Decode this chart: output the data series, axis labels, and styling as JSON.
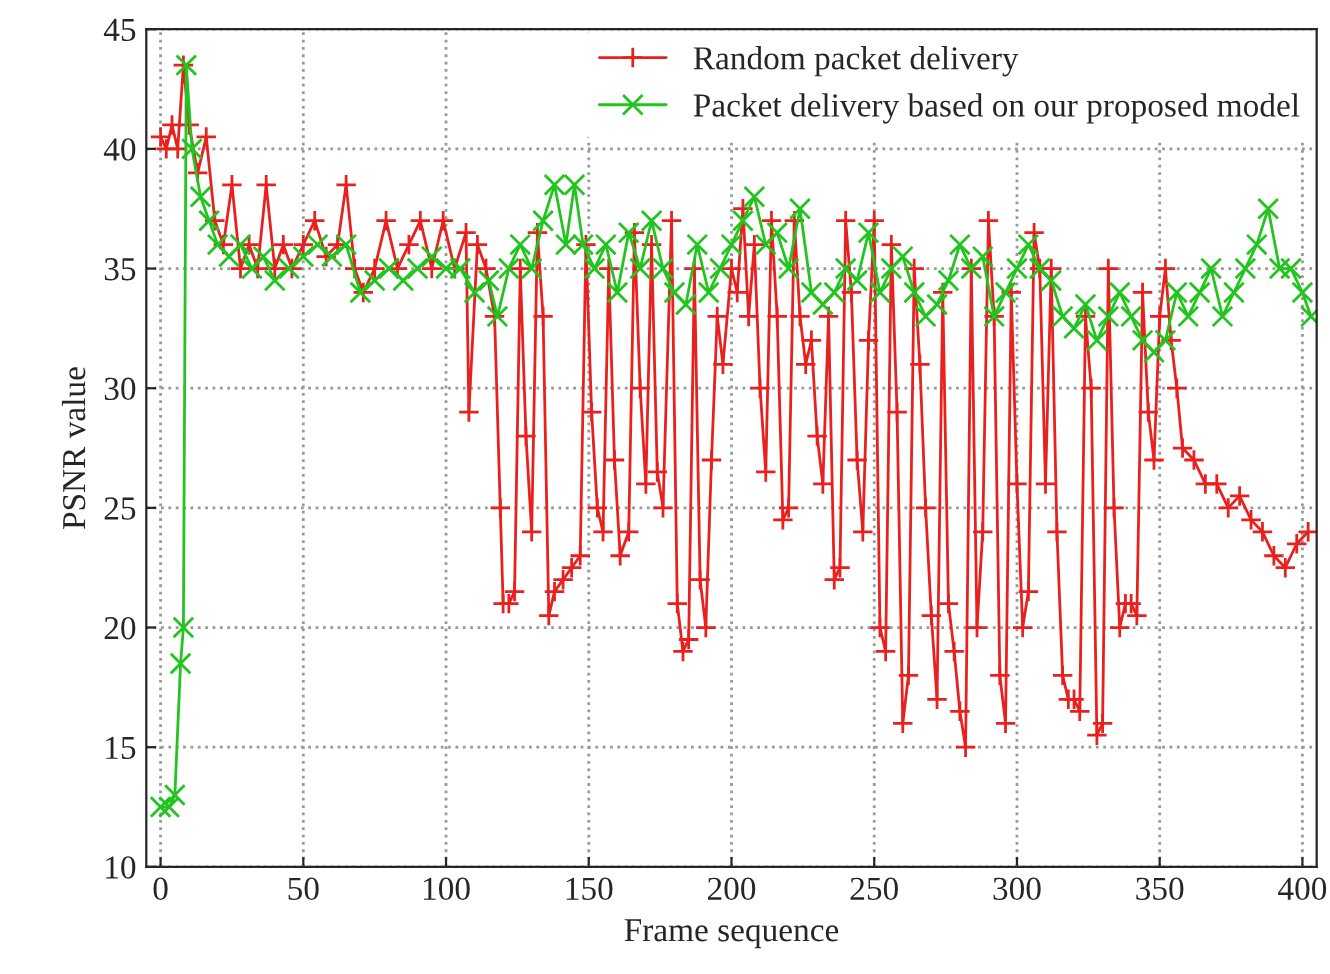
{
  "chart_data": {
    "type": "line",
    "xlabel": "Frame sequence",
    "ylabel": "PSNR value",
    "xlim": [
      -5,
      405
    ],
    "ylim": [
      10,
      45
    ],
    "xticks": [
      0,
      50,
      100,
      150,
      200,
      250,
      300,
      350,
      400
    ],
    "yticks": [
      10,
      15,
      20,
      25,
      30,
      35,
      40,
      45
    ],
    "grid": true,
    "legend": "top right",
    "series": [
      {
        "name": "Random packet delivery",
        "color": "#e8201e",
        "marker": "cross",
        "x": [
          0,
          2,
          4,
          6,
          8,
          10,
          13,
          16,
          19,
          22,
          25,
          28,
          31,
          34,
          37,
          40,
          43,
          46,
          50,
          54,
          58,
          62,
          65,
          68,
          71,
          75,
          79,
          83,
          87,
          91,
          95,
          99,
          103,
          107,
          108,
          111,
          114,
          117,
          119,
          120,
          122,
          124,
          126,
          128,
          130,
          132,
          134,
          136,
          138,
          141,
          144,
          147,
          149,
          151,
          153,
          155,
          157,
          159,
          161,
          164,
          166,
          168,
          170,
          172,
          174,
          176,
          179,
          181,
          183,
          185,
          187,
          189,
          191,
          193,
          195,
          197,
          200,
          202,
          204,
          206,
          208,
          210,
          212,
          214,
          216,
          218,
          220,
          222,
          224,
          226,
          228,
          230,
          232,
          234,
          236,
          238,
          240,
          242,
          244,
          246,
          248,
          250,
          252,
          254,
          256,
          258,
          260,
          262,
          264,
          266,
          268,
          270,
          272,
          274,
          276,
          278,
          280,
          282,
          284,
          286,
          288,
          290,
          292,
          294,
          296,
          298,
          300,
          302,
          304,
          306,
          308,
          310,
          312,
          314,
          316,
          318,
          320,
          322,
          324,
          326,
          328,
          330,
          332,
          334,
          336,
          338,
          340,
          342,
          344,
          346,
          348,
          350,
          352,
          354,
          356,
          358,
          362,
          366,
          370,
          374,
          378,
          382,
          386,
          390,
          394,
          398,
          402
        ],
        "values": [
          40.5,
          40,
          41,
          40,
          43.5,
          41,
          39,
          40.5,
          37,
          36,
          38.5,
          35,
          36,
          35,
          38.5,
          35,
          36,
          35,
          36,
          37,
          35.5,
          36,
          38.5,
          35,
          34,
          35,
          37,
          35,
          36,
          37,
          35,
          37,
          35,
          36.5,
          29,
          36,
          35,
          33,
          25,
          21,
          21,
          21.5,
          35,
          28,
          24,
          36.5,
          33,
          20.5,
          21.5,
          22,
          22.5,
          23,
          36,
          29,
          25,
          24,
          35,
          27,
          23,
          24,
          36.5,
          30,
          26,
          36,
          26.5,
          25,
          37,
          21,
          19,
          19.5,
          35,
          22,
          20,
          27,
          33,
          31,
          35,
          34,
          37.5,
          33,
          36,
          30,
          26.5,
          37,
          33,
          24.5,
          25,
          37,
          33,
          31,
          32,
          28,
          26,
          33,
          22,
          22.5,
          37,
          34,
          27,
          24,
          32,
          37,
          20,
          19,
          36,
          29,
          16,
          18,
          35,
          31,
          25,
          20.5,
          17,
          34,
          21,
          19,
          16.5,
          15,
          35,
          20,
          24,
          37,
          33,
          18,
          16,
          34,
          26,
          20,
          21.5,
          36.5,
          35,
          26,
          35,
          24,
          18,
          17,
          17,
          16.5,
          33,
          30,
          15.5,
          16,
          35,
          25,
          20,
          21,
          21,
          20.5,
          34,
          29,
          27,
          33,
          35,
          32,
          30,
          27.5,
          27,
          26,
          26,
          25,
          25.5,
          24.5,
          24,
          23,
          22.5,
          23.5,
          24
        ]
      },
      {
        "name": "Packet delivery based on our proposed model",
        "color": "#22c41e",
        "marker": "x",
        "x": [
          0,
          3,
          5,
          7,
          8,
          9,
          11,
          14,
          17,
          20,
          24,
          28,
          32,
          36,
          40,
          45,
          50,
          55,
          60,
          65,
          70,
          75,
          80,
          85,
          90,
          95,
          100,
          105,
          110,
          115,
          118,
          122,
          126,
          130,
          134,
          138,
          142,
          145,
          148,
          152,
          156,
          160,
          164,
          168,
          172,
          176,
          180,
          184,
          188,
          192,
          196,
          200,
          204,
          208,
          212,
          216,
          220,
          224,
          228,
          232,
          236,
          240,
          244,
          248,
          252,
          256,
          260,
          264,
          268,
          272,
          276,
          280,
          284,
          288,
          292,
          296,
          300,
          304,
          308,
          312,
          316,
          320,
          324,
          328,
          332,
          336,
          340,
          344,
          348,
          352,
          356,
          360,
          364,
          368,
          372,
          376,
          380,
          384,
          388,
          392,
          396,
          400,
          403
        ],
        "values": [
          12.5,
          12.5,
          13,
          18.5,
          20,
          43.5,
          40,
          38,
          37,
          36,
          35.5,
          36,
          35,
          35.5,
          34.5,
          35,
          35.5,
          36,
          35.5,
          36,
          34,
          34.5,
          35,
          34.5,
          35,
          35.5,
          35,
          35,
          34,
          34.5,
          33,
          35,
          36,
          35,
          37,
          38.5,
          36,
          38.5,
          36,
          35,
          36,
          34,
          36.5,
          35,
          37,
          35,
          34,
          33.5,
          36,
          34,
          35,
          36,
          37,
          38,
          36,
          36.5,
          35,
          37.5,
          34,
          33.5,
          34,
          35,
          34.5,
          36.5,
          34,
          35,
          35.5,
          34,
          33,
          33.5,
          34.5,
          36,
          35,
          35.5,
          33,
          34,
          35,
          36,
          35,
          34.5,
          33,
          32.5,
          33.5,
          32,
          33,
          34,
          33,
          32,
          31.5,
          32,
          34,
          33,
          34,
          35,
          33,
          34,
          35,
          36,
          37.5,
          35,
          35,
          34,
          33
        ]
      }
    ]
  }
}
